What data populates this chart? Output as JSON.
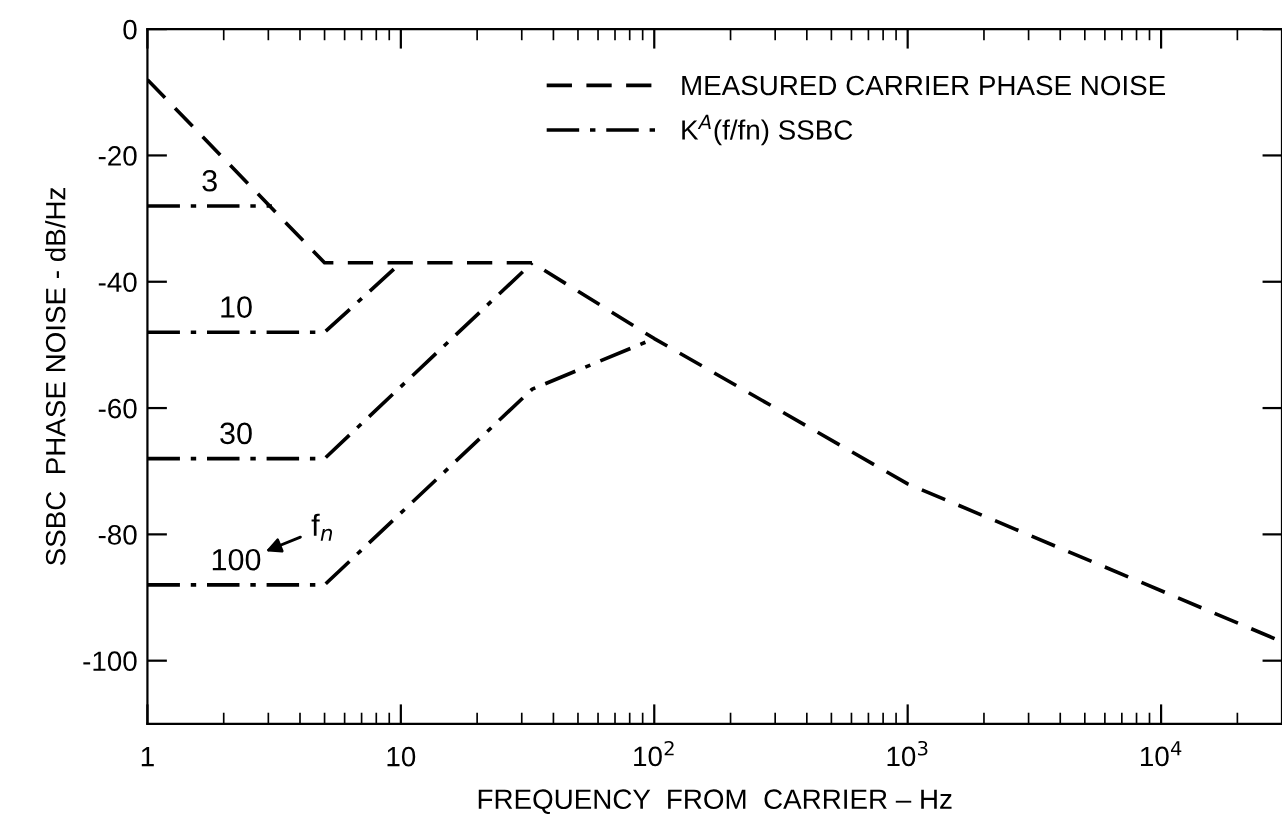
{
  "chart_data": {
    "type": "line",
    "xlabel": "FREQUENCY  FROM  CARRIER – Hz",
    "ylabel": "SSBC  PHASE NOISE - dB/Hz",
    "log": "x",
    "xlim": [
      1,
      30000
    ],
    "ylim": [
      -110,
      0
    ],
    "xticks": [
      1,
      10,
      {
        "value": 100,
        "label": "10$^{2}$"
      },
      {
        "value": 1000,
        "label": "10$^{3}$"
      },
      {
        "value": 10000,
        "label": "10$^{4}$"
      }
    ],
    "yticks": [
      {
        "value": 0,
        "label": "0"
      },
      -20,
      -40,
      -60,
      -80,
      -100
    ],
    "grid": false,
    "legend": "top right",
    "marker": "none",
    "series": [
      {
        "name": "MEASURED CARRIER PHASE NOISE",
        "color": "#000000",
        "line_style": "dashed",
        "x": [
          1,
          5,
          33,
          100,
          1000,
          30000
        ],
        "values": [
          -8,
          -37,
          -37,
          -49,
          -72,
          -97
        ]
      },
      {
        "name": "K$^{A}$(f/fn) SSBC",
        "color": "#000000",
        "line_style": "dashdot",
        "x": [
          1,
          3.1
        ],
        "values": [
          -28,
          -28
        ]
      },
      {
        "color": "#000000",
        "line_style": "dashdot",
        "x": [
          1,
          5,
          10
        ],
        "values": [
          -48,
          -48,
          -37
        ]
      },
      {
        "color": "#000000",
        "line_style": "dashdot",
        "x": [
          1,
          5,
          33
        ],
        "values": [
          -68,
          -68,
          -37
        ]
      },
      {
        "color": "#000000",
        "line_style": "dashdot",
        "x": [
          1,
          5,
          33,
          100
        ],
        "values": [
          -88,
          -88,
          -57,
          -49
        ]
      }
    ],
    "annotations": [
      "3",
      "10",
      "30",
      "100",
      "f$_{n}$"
    ]
  }
}
